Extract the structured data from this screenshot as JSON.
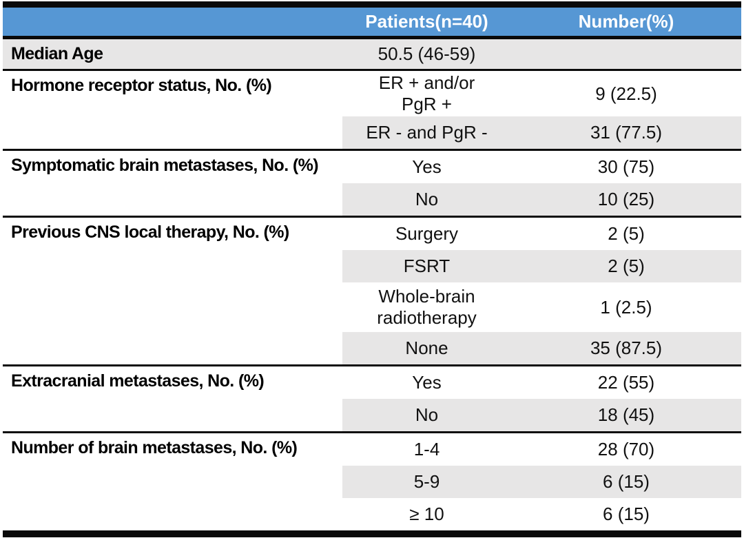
{
  "colors": {
    "header_bg": "#5697D4",
    "header_text": "#FFFFFF",
    "band_gray": "#E7E6E6",
    "rule_black": "#0A0A0A",
    "body_text": "#111111"
  },
  "header": {
    "col1": "",
    "col2": "Patients(n=40)",
    "col3": "Number(%)"
  },
  "sections": [
    {
      "label": "Median Age",
      "rows": [
        {
          "value": "50.5 (46-59)",
          "number": "",
          "shaded": true
        }
      ]
    },
    {
      "label": "Hormone receptor status, No. (%)",
      "rows": [
        {
          "value": "ER + and/or\nPgR +",
          "number": "9 (22.5)",
          "shaded": false
        },
        {
          "value": "ER - and PgR -",
          "number": "31 (77.5)",
          "shaded": true
        }
      ]
    },
    {
      "label": "Symptomatic brain metastases, No. (%)",
      "rows": [
        {
          "value": "Yes",
          "number": "30 (75)",
          "shaded": false
        },
        {
          "value": "No",
          "number": "10 (25)",
          "shaded": true
        }
      ]
    },
    {
      "label": "Previous CNS local therapy, No. (%)",
      "rows": [
        {
          "value": "Surgery",
          "number": "2 (5)",
          "shaded": false
        },
        {
          "value": "FSRT",
          "number": "2 (5)",
          "shaded": true
        },
        {
          "value": "Whole-brain\nradiotherapy",
          "number": "1 (2.5)",
          "shaded": false
        },
        {
          "value": "None",
          "number": "35 (87.5)",
          "shaded": true
        }
      ]
    },
    {
      "label": "Extracranial metastases, No. (%)",
      "rows": [
        {
          "value": "Yes",
          "number": "22 (55)",
          "shaded": false
        },
        {
          "value": "No",
          "number": "18 (45)",
          "shaded": true
        }
      ]
    },
    {
      "label": "Number of brain metastases, No. (%)",
      "rows": [
        {
          "value": "1-4",
          "number": "28 (70)",
          "shaded": false
        },
        {
          "value": "5-9",
          "number": "6 (15)",
          "shaded": true
        },
        {
          "value": "≥ 10",
          "number": "6 (15)",
          "shaded": false
        }
      ]
    }
  ]
}
